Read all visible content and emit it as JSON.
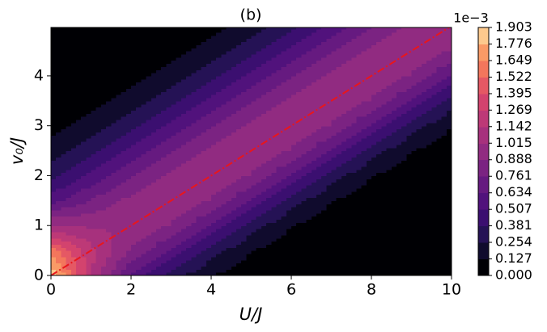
{
  "chart_data": {
    "type": "contour",
    "title": "(b)",
    "xlabel": "U/J",
    "ylabel": "v₀/J",
    "x": [
      0,
      1,
      2,
      3,
      4,
      5,
      6,
      7,
      8,
      9,
      10
    ],
    "y": [
      0,
      0.5,
      1,
      1.5,
      2,
      2.5,
      3,
      3.5,
      4,
      4.5,
      5
    ],
    "z": [
      [
        1.9,
        1.14,
        0.6,
        0.32,
        0.13,
        0.04,
        0.01,
        0,
        0,
        0,
        0
      ],
      [
        1.59,
        1.19,
        0.88,
        0.6,
        0.32,
        0.13,
        0.04,
        0.01,
        0,
        0,
        0
      ],
      [
        1.02,
        1.0,
        1.0,
        0.88,
        0.6,
        0.32,
        0.13,
        0.04,
        0.01,
        0,
        0
      ],
      [
        0.59,
        0.78,
        0.93,
        1.0,
        0.88,
        0.6,
        0.32,
        0.13,
        0.04,
        0.01,
        0
      ],
      [
        0.33,
        0.54,
        0.76,
        0.93,
        1.0,
        0.88,
        0.6,
        0.32,
        0.13,
        0.04,
        0.01
      ],
      [
        0.18,
        0.33,
        0.54,
        0.76,
        0.93,
        1.0,
        0.88,
        0.6,
        0.32,
        0.13,
        0.04
      ],
      [
        0.08,
        0.18,
        0.33,
        0.54,
        0.76,
        0.93,
        1.0,
        0.88,
        0.6,
        0.32,
        0.13
      ],
      [
        0.03,
        0.08,
        0.18,
        0.33,
        0.54,
        0.76,
        0.93,
        1.0,
        0.88,
        0.6,
        0.32
      ],
      [
        0.01,
        0.03,
        0.08,
        0.18,
        0.33,
        0.54,
        0.76,
        0.93,
        1.0,
        0.88,
        0.6
      ],
      [
        0,
        0.01,
        0.03,
        0.08,
        0.18,
        0.33,
        0.54,
        0.76,
        0.93,
        1.0,
        0.88
      ],
      [
        0,
        0,
        0.01,
        0.03,
        0.08,
        0.18,
        0.33,
        0.54,
        0.76,
        0.93,
        1.0
      ]
    ],
    "xlim": [
      0,
      10
    ],
    "ylim": [
      0,
      4.97
    ],
    "xticks": [
      0,
      2,
      4,
      6,
      8,
      10
    ],
    "yticks": [
      0,
      1,
      2,
      3,
      4
    ],
    "colorbar": {
      "offset": "1e−3",
      "ticks": [
        {
          "value": 0,
          "label": "0.000"
        },
        {
          "value": 0.127,
          "label": "0.127"
        },
        {
          "value": 0.254,
          "label": "0.254"
        },
        {
          "value": 0.381,
          "label": "0.381"
        },
        {
          "value": 0.507,
          "label": "0.507"
        },
        {
          "value": 0.634,
          "label": "0.634"
        },
        {
          "value": 0.761,
          "label": "0.761"
        },
        {
          "value": 0.888,
          "label": "0.888"
        },
        {
          "value": 1.015,
          "label": "1.015"
        },
        {
          "value": 1.142,
          "label": "1.142"
        },
        {
          "value": 1.269,
          "label": "1.269"
        },
        {
          "value": 1.395,
          "label": "1.395"
        },
        {
          "value": 1.522,
          "label": "1.522"
        },
        {
          "value": 1.649,
          "label": "1.649"
        },
        {
          "value": 1.776,
          "label": "1.776"
        },
        {
          "value": 1.903,
          "label": "1.903"
        }
      ],
      "colors": [
        "#000004",
        "#100b2d",
        "#251255",
        "#3b0f70",
        "#51127c",
        "#661a80",
        "#7b2382",
        "#912b81",
        "#a7317d",
        "#bd3977",
        "#d3436e",
        "#e55864",
        "#f3765c",
        "#fa9a66",
        "#fdc98d"
      ]
    },
    "line": {
      "x": [
        0,
        10
      ],
      "y": [
        0,
        5
      ],
      "color": "#e8161d"
    }
  }
}
